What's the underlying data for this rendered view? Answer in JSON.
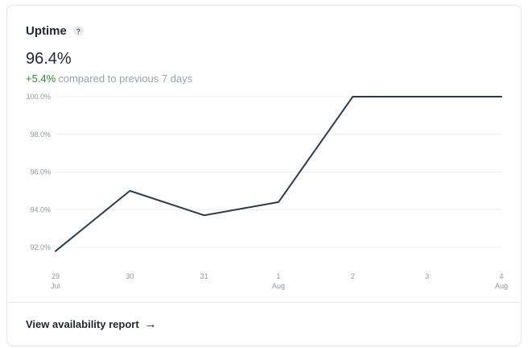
{
  "card": {
    "title": "Uptime",
    "help_icon": "?",
    "value": "96.4%",
    "delta": "+5.4%",
    "delta_text": "compared to previous 7 days",
    "footer_link": "View availability report",
    "arrow_icon": "→"
  },
  "colors": {
    "line": "#2d3b4e",
    "grid": "#ececec",
    "positive": "#2f8a2f"
  },
  "chart_data": {
    "type": "line",
    "title": "",
    "xlabel": "",
    "ylabel": "",
    "ylim": [
      92.0,
      100.0
    ],
    "yticks": [
      "92.0%",
      "94.0%",
      "96.0%",
      "98.0%",
      "100.0%"
    ],
    "ytick_values": [
      92.0,
      94.0,
      96.0,
      98.0,
      100.0
    ],
    "categories": [
      "29 Jul",
      "30",
      "31",
      "1 Aug",
      "2",
      "3",
      "4 Aug"
    ],
    "x_labels": [
      {
        "day": "29",
        "month": "Jul"
      },
      {
        "day": "30",
        "month": ""
      },
      {
        "day": "31",
        "month": ""
      },
      {
        "day": "1",
        "month": "Aug"
      },
      {
        "day": "2",
        "month": ""
      },
      {
        "day": "3",
        "month": ""
      },
      {
        "day": "4",
        "month": "Aug"
      }
    ],
    "series": [
      {
        "values": [
          91.8,
          95.0,
          93.7,
          94.4,
          100.0,
          100.0,
          100.0
        ]
      }
    ],
    "grid": true
  }
}
